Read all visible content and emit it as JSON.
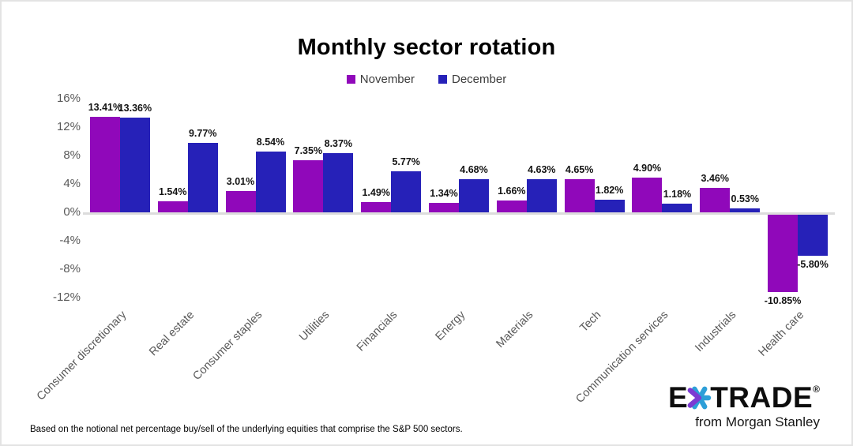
{
  "title": "Monthly sector rotation",
  "legend": {
    "items": [
      {
        "label": "November",
        "color": "#9008BA"
      },
      {
        "label": "December",
        "color": "#2621B8"
      }
    ]
  },
  "chart_data": {
    "type": "bar",
    "title": "Monthly sector rotation",
    "categories": [
      "Consumer discretionary",
      "Real estate",
      "Consumer staples",
      "Utilities",
      "Financials",
      "Energy",
      "Materials",
      "Tech",
      "Communication services",
      "Industrials",
      "Health care"
    ],
    "series": [
      {
        "name": "November",
        "color": "#9008BA",
        "values": [
          13.41,
          1.54,
          3.01,
          7.35,
          1.49,
          1.34,
          1.66,
          4.65,
          4.9,
          3.46,
          -10.85
        ],
        "labels": [
          "13.41%",
          "1.54%",
          "3.01%",
          "7.35%",
          "1.49%",
          "1.34%",
          "1.66%",
          "4.65%",
          "4.90%",
          "3.46%",
          "-10.85%"
        ]
      },
      {
        "name": "December",
        "color": "#2621B8",
        "values": [
          13.36,
          9.77,
          8.54,
          8.37,
          5.77,
          4.68,
          4.63,
          1.82,
          1.18,
          0.53,
          -5.8
        ],
        "labels": [
          "13.36%",
          "9.77%",
          "8.54%",
          "8.37%",
          "5.77%",
          "4.68%",
          "4.63%",
          "1.82%",
          "1.18%",
          "0.53%",
          "-5.80%"
        ]
      }
    ],
    "ylim": [
      -12,
      16
    ],
    "ytick_values": [
      16,
      12,
      8,
      4,
      0,
      -4,
      -8,
      -12
    ],
    "ytick_labels": [
      "16%",
      "12%",
      "8%",
      "4%",
      "0%",
      "-4%",
      "-8%",
      "-12%"
    ],
    "xlabel": "",
    "ylabel": "",
    "grid": false,
    "legend_position": "top",
    "axis_text_color": "#595959",
    "zero_line_color": "#dcdcdc"
  },
  "footnote": "Based on the notional net percentage buy/sell of the underlying equities that comprise the S&P 500 sectors.",
  "logo": {
    "brand_left": "E",
    "brand_right": "TRADE",
    "registered": "®",
    "tagline": "from Morgan Stanley",
    "star_purple": "#7c3bd2",
    "star_blue": "#2d9fd8"
  }
}
